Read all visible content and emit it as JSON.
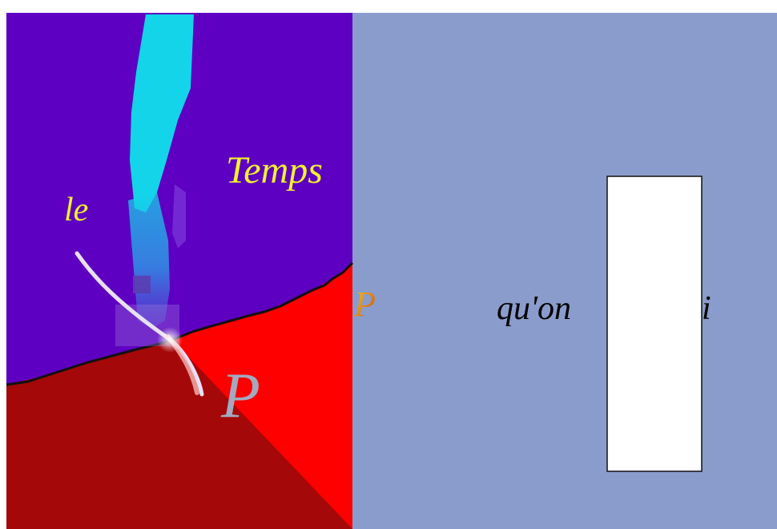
{
  "words": {
    "temps": "Temps",
    "le": "le",
    "p_large": "P",
    "p_small": "P",
    "quon": "qu'on",
    "i": "i"
  },
  "colors": {
    "purple": "#5e00c2",
    "bright_red": "#ff0000",
    "dark_red": "#a50808",
    "slate_blue": "#8a9ccb",
    "cyan": "#14d4ea",
    "yellow": "#f2f22e",
    "gray_p": "#a3a9bf",
    "white": "#ffffff",
    "black": "#000000"
  }
}
